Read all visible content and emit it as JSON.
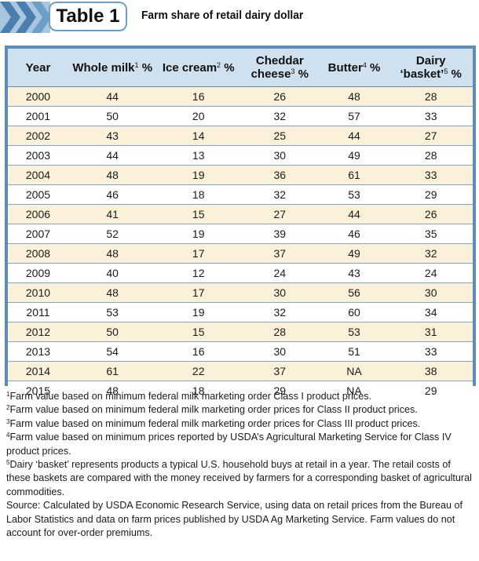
{
  "header": {
    "badge": "Table 1",
    "title": "Farm share of retail dairy dollar"
  },
  "table": {
    "columns": [
      {
        "label": "Year",
        "sup": ""
      },
      {
        "label": "Whole milk",
        "sup": "1",
        "suffix": " %"
      },
      {
        "label": "Ice cream",
        "sup": "2",
        "suffix": " %"
      },
      {
        "label_line1": "Cheddar",
        "label_line2": "cheese",
        "sup": "3",
        "suffix": " %"
      },
      {
        "label": "Butter",
        "sup": "4",
        "suffix": " %"
      },
      {
        "label_line1": "Dairy",
        "label_line2": "‘basket’",
        "sup": "5",
        "suffix": " %"
      }
    ],
    "rows": [
      [
        "2000",
        "44",
        "16",
        "26",
        "48",
        "28"
      ],
      [
        "2001",
        "50",
        "20",
        "32",
        "57",
        "33"
      ],
      [
        "2002",
        "43",
        "14",
        "25",
        "44",
        "27"
      ],
      [
        "2003",
        "44",
        "13",
        "30",
        "49",
        "28"
      ],
      [
        "2004",
        "48",
        "19",
        "36",
        "61",
        "33"
      ],
      [
        "2005",
        "46",
        "18",
        "32",
        "53",
        "29"
      ],
      [
        "2006",
        "41",
        "15",
        "27",
        "44",
        "26"
      ],
      [
        "2007",
        "52",
        "19",
        "39",
        "46",
        "35"
      ],
      [
        "2008",
        "48",
        "17",
        "37",
        "49",
        "32"
      ],
      [
        "2009",
        "40",
        "12",
        "24",
        "43",
        "24"
      ],
      [
        "2010",
        "48",
        "17",
        "30",
        "56",
        "30"
      ],
      [
        "2011",
        "53",
        "19",
        "32",
        "60",
        "34"
      ],
      [
        "2012",
        "50",
        "15",
        "28",
        "53",
        "31"
      ],
      [
        "2013",
        "54",
        "16",
        "30",
        "51",
        "33"
      ],
      [
        "2014",
        "61",
        "22",
        "37",
        "NA",
        "38"
      ],
      [
        "2015",
        "48",
        "18",
        "29",
        "NA",
        "29"
      ]
    ]
  },
  "footnotes": {
    "n1": {
      "mark": "1",
      "text": "Farm value  based on minimum federal milk marketing order Class I product prices."
    },
    "n2": {
      "mark": "2",
      "text": "Farm value based on minimum federal milk marketing order prices for Class II product prices."
    },
    "n3": {
      "mark": "3",
      "text": "Farm value based on minimum federal milk marketing order prices for Class III product prices."
    },
    "n4": {
      "mark": "4",
      "text": "Farm value based on minimum prices reported by USDA’s Agricultural Marketing Service for Class IV product prices."
    },
    "n5": {
      "mark": "5",
      "text": "Dairy ‘basket’ represents products a typical U.S. household buys at retail in a year. The retail costs of these baskets are compared with the money received by farmers for a corresponding basket of agricultural commodities."
    },
    "source": "Source: Calculated by USDA Economic Research Service, using data on retail prices from the Bureau of Labor Statistics and data on farm prices published by USDA Ag Marketing Service. Farm values do not account for over-order premiums."
  },
  "colors": {
    "header_fill": "#cfe0ef",
    "frame_blue": "#5b8db9",
    "stripe": "#fbf1d8",
    "chevron_dark": "#4a7fad",
    "chevron_light": "#a9c6df"
  }
}
